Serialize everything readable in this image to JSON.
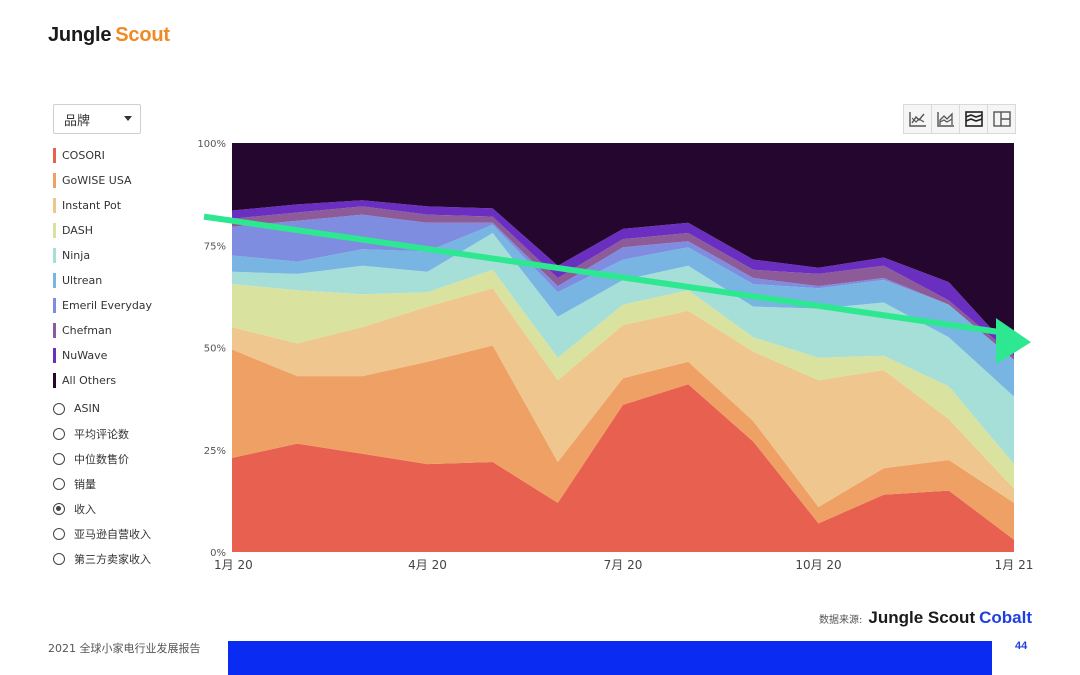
{
  "brand": {
    "part1": "Jungle",
    "part2": "Scout"
  },
  "dropdown": {
    "label": "品牌"
  },
  "legend": [
    {
      "label": "COSORI",
      "color": "#e8604f"
    },
    {
      "label": "GoWISE USA",
      "color": "#efa064"
    },
    {
      "label": "Instant Pot",
      "color": "#efc68d"
    },
    {
      "label": "DASH",
      "color": "#d9e39f"
    },
    {
      "label": "Ninja",
      "color": "#a6dfd7"
    },
    {
      "label": "Ultrean",
      "color": "#79b5e3"
    },
    {
      "label": "Emeril Everyday",
      "color": "#7e8de0"
    },
    {
      "label": "Chefman",
      "color": "#8d5b97"
    },
    {
      "label": "NuWave",
      "color": "#6a2fc0"
    },
    {
      "label": "All Others",
      "color": "#25062e"
    }
  ],
  "metrics": [
    {
      "label": "ASIN",
      "selected": false
    },
    {
      "label": "平均评论数",
      "selected": false
    },
    {
      "label": "中位数售价",
      "selected": false
    },
    {
      "label": "销量",
      "selected": false
    },
    {
      "label": "收入",
      "selected": true
    },
    {
      "label": "亚马逊自营收入",
      "selected": false
    },
    {
      "label": "第三方卖家收入",
      "selected": false
    }
  ],
  "toolbar_icons": [
    "line-chart-icon",
    "area-chart-icon",
    "stacked-area-icon",
    "grid-view-icon"
  ],
  "chart_data": {
    "type": "area",
    "stacked_percent": true,
    "x": [
      "1月 20",
      "2月 20",
      "3月 20",
      "4月 20",
      "5月 20",
      "6月 20",
      "7月 20",
      "8月 20",
      "9月 20",
      "10月 20",
      "11月 20",
      "12月 20",
      "1月 21"
    ],
    "x_tick_labels": [
      "1月 20",
      "4月 20",
      "7月 20",
      "10月 20",
      "1月 21"
    ],
    "y_tick_labels": [
      "0%",
      "25%",
      "50%",
      "75%",
      "100%"
    ],
    "ylim": [
      0,
      100
    ],
    "series": [
      {
        "name": "COSORI",
        "values": [
          23,
          26.5,
          24,
          21.5,
          22,
          12,
          36,
          41,
          27,
          7,
          14,
          15,
          3
        ]
      },
      {
        "name": "GoWISE USA",
        "values": [
          26.5,
          16.5,
          19,
          25,
          28.5,
          10,
          6.5,
          5.5,
          5,
          4,
          6.5,
          7.5,
          9
        ]
      },
      {
        "name": "Instant Pot",
        "values": [
          5.5,
          8,
          12,
          13.5,
          14,
          20,
          13,
          12.5,
          17,
          31,
          24,
          10,
          3.5
        ]
      },
      {
        "name": "DASH",
        "values": [
          10.5,
          13,
          8,
          3.5,
          4.5,
          5.5,
          5,
          5,
          3.5,
          5.5,
          3.5,
          8,
          6
        ]
      },
      {
        "name": "Ninja",
        "values": [
          3,
          4,
          7,
          5,
          9,
          10,
          6,
          6,
          7.5,
          12,
          13,
          12,
          16.5
        ]
      },
      {
        "name": "Ultrean",
        "values": [
          4,
          3,
          4,
          5,
          2,
          6,
          5,
          4.5,
          5.5,
          5,
          5.5,
          8,
          9
        ]
      },
      {
        "name": "Emeril Everyday",
        "values": [
          7,
          10,
          8.5,
          7,
          0.5,
          1.5,
          3,
          1.5,
          1.5,
          0.5,
          0.5,
          0,
          0
        ]
      },
      {
        "name": "Chefman",
        "values": [
          2,
          2,
          2,
          2,
          1.5,
          2,
          2,
          2,
          2,
          3,
          3,
          1,
          1
        ]
      },
      {
        "name": "NuWave",
        "values": [
          2,
          2,
          1.5,
          2,
          2,
          3,
          2.5,
          2.5,
          2.5,
          1.5,
          2,
          4.5,
          0.5
        ]
      },
      {
        "name": "All Others",
        "values": [
          16.5,
          15,
          14,
          15.5,
          16,
          30,
          21,
          19.5,
          29.5,
          30.5,
          28,
          34,
          51.5
        ]
      }
    ],
    "annotation": {
      "type": "trend-arrow",
      "color": "#2ee891",
      "from": [
        "1月 20",
        82
      ],
      "to": [
        "1月 21",
        54
      ]
    }
  },
  "source": {
    "label": "数据来源:",
    "brand1": "Jungle Scout",
    "brand2": "Cobalt"
  },
  "footer": {
    "report_title": "2021 全球小家电行业发展报告",
    "page_number": "44"
  }
}
